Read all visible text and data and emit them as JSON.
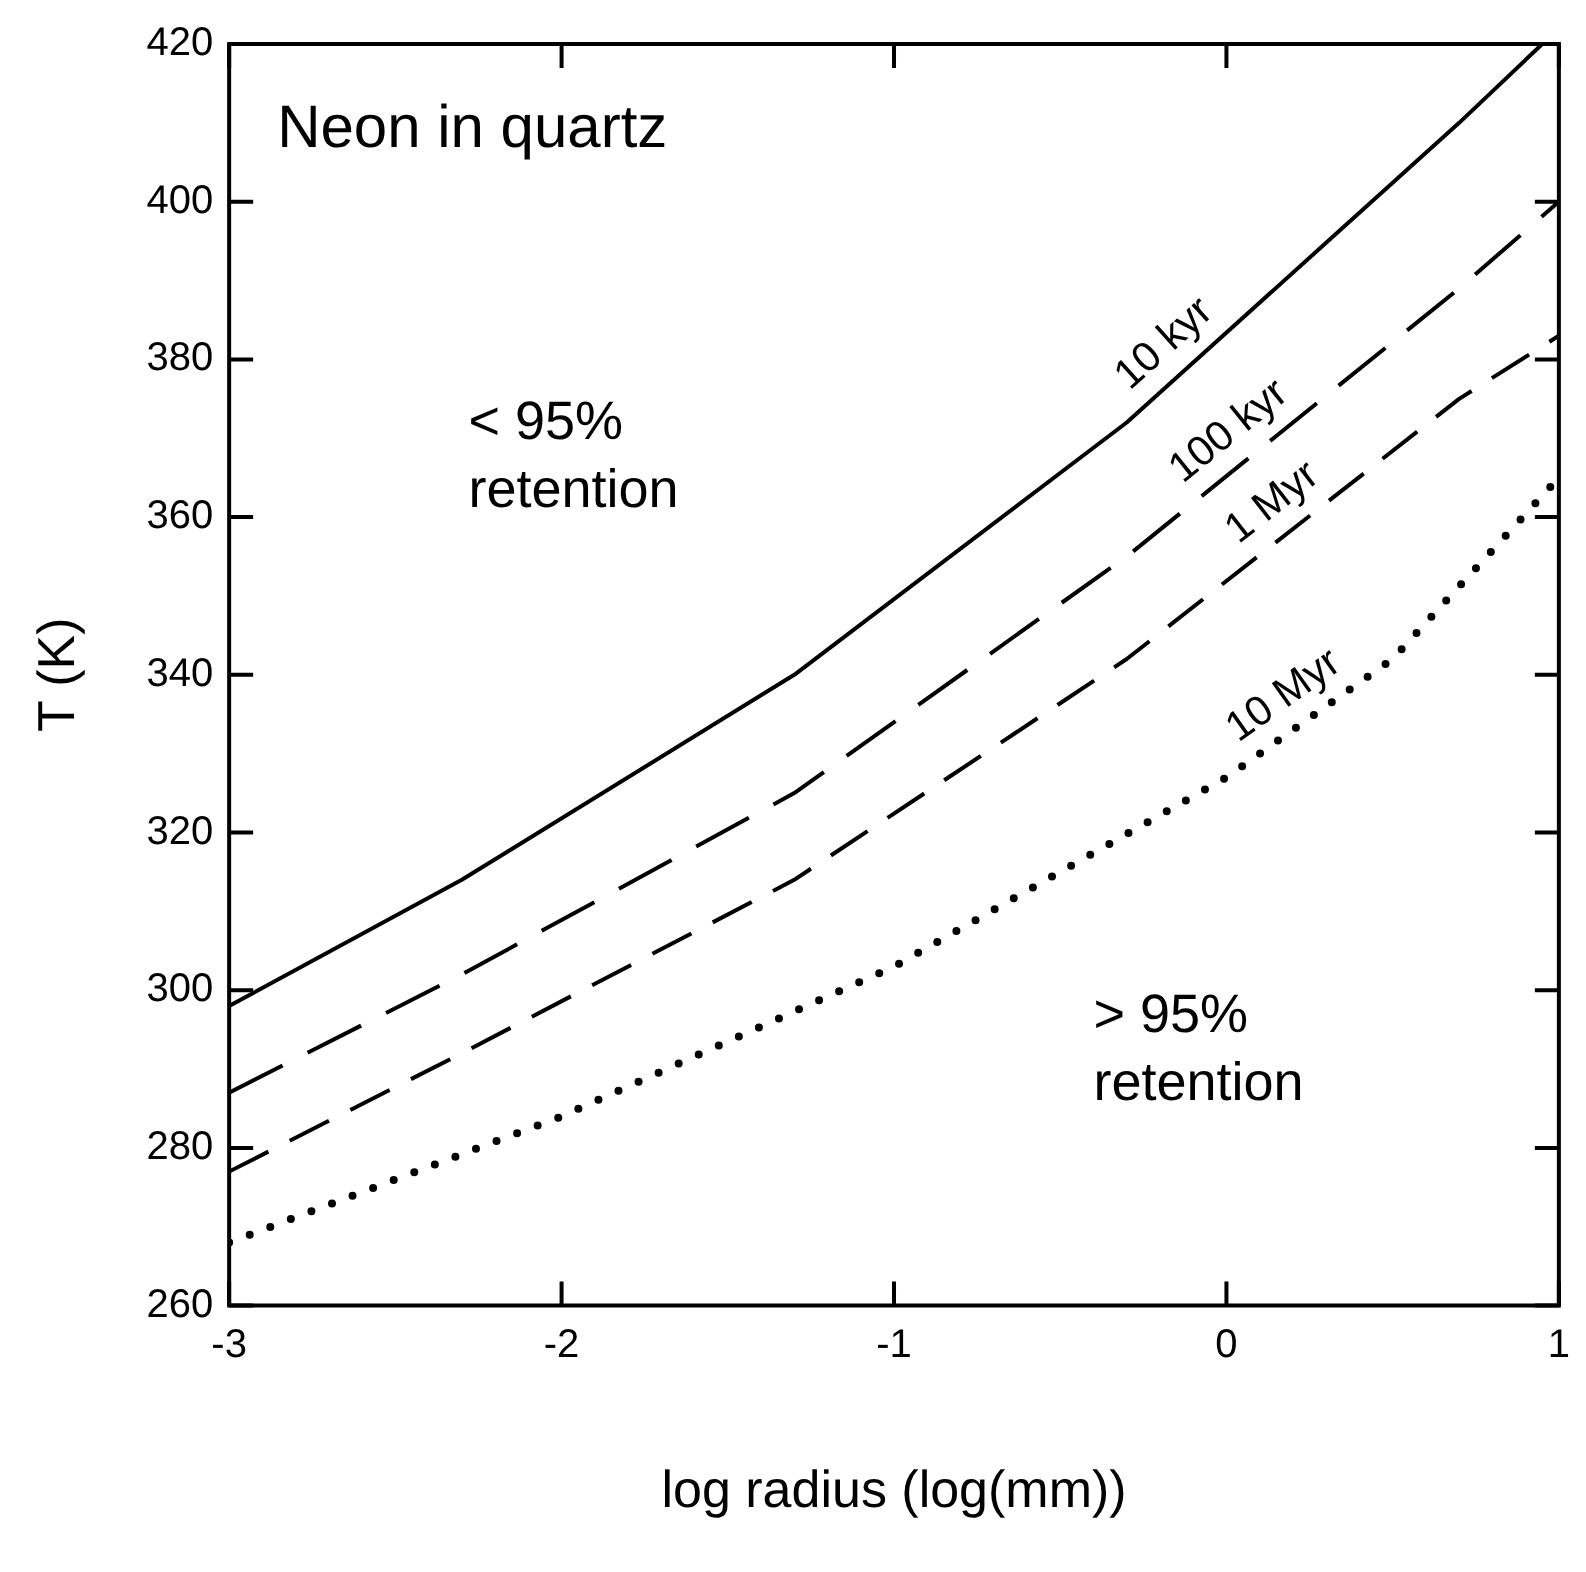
{
  "chart_data": {
    "type": "line",
    "title": "Neon in quartz",
    "xlabel": "log radius (log(mm))",
    "ylabel": "T (K)",
    "xlim": [
      -3,
      1
    ],
    "xticks": [
      -3,
      -2,
      -1,
      0,
      1
    ],
    "ylim": [
      260,
      420
    ],
    "yticks": [
      260,
      280,
      300,
      320,
      340,
      360,
      380,
      400,
      420
    ],
    "grid": false,
    "legend": false,
    "marker": "none",
    "annotations": [
      "< 95% retention",
      "> 95% retention"
    ],
    "series": [
      {
        "name": "10 kyr",
        "color": "#000000",
        "line_style": "solid",
        "x": [
          -3,
          -2.3,
          -1.3,
          -0.3,
          0.7,
          0.95
        ],
        "values": [
          298,
          314,
          340,
          372,
          410,
          420
        ]
      },
      {
        "name": "100 kyr",
        "color": "#000000",
        "line_style": "dashed",
        "x": [
          -3,
          -2.3,
          -1.3,
          -0.3,
          0.7,
          1
        ],
        "values": [
          287,
          302,
          325,
          355,
          389,
          400
        ]
      },
      {
        "name": "1 Myr",
        "color": "#000000",
        "line_style": "dashed",
        "x": [
          -3,
          -2.3,
          -1.3,
          -0.3,
          0.7,
          1
        ],
        "values": [
          277,
          292,
          314,
          342,
          375,
          383
        ]
      },
      {
        "name": "10 Myr",
        "color": "#000000",
        "line_style": "dotted",
        "x": [
          -3,
          -2,
          -1,
          0,
          0.5,
          1
        ],
        "values": [
          268,
          284,
          303,
          327,
          342,
          365
        ]
      }
    ]
  }
}
